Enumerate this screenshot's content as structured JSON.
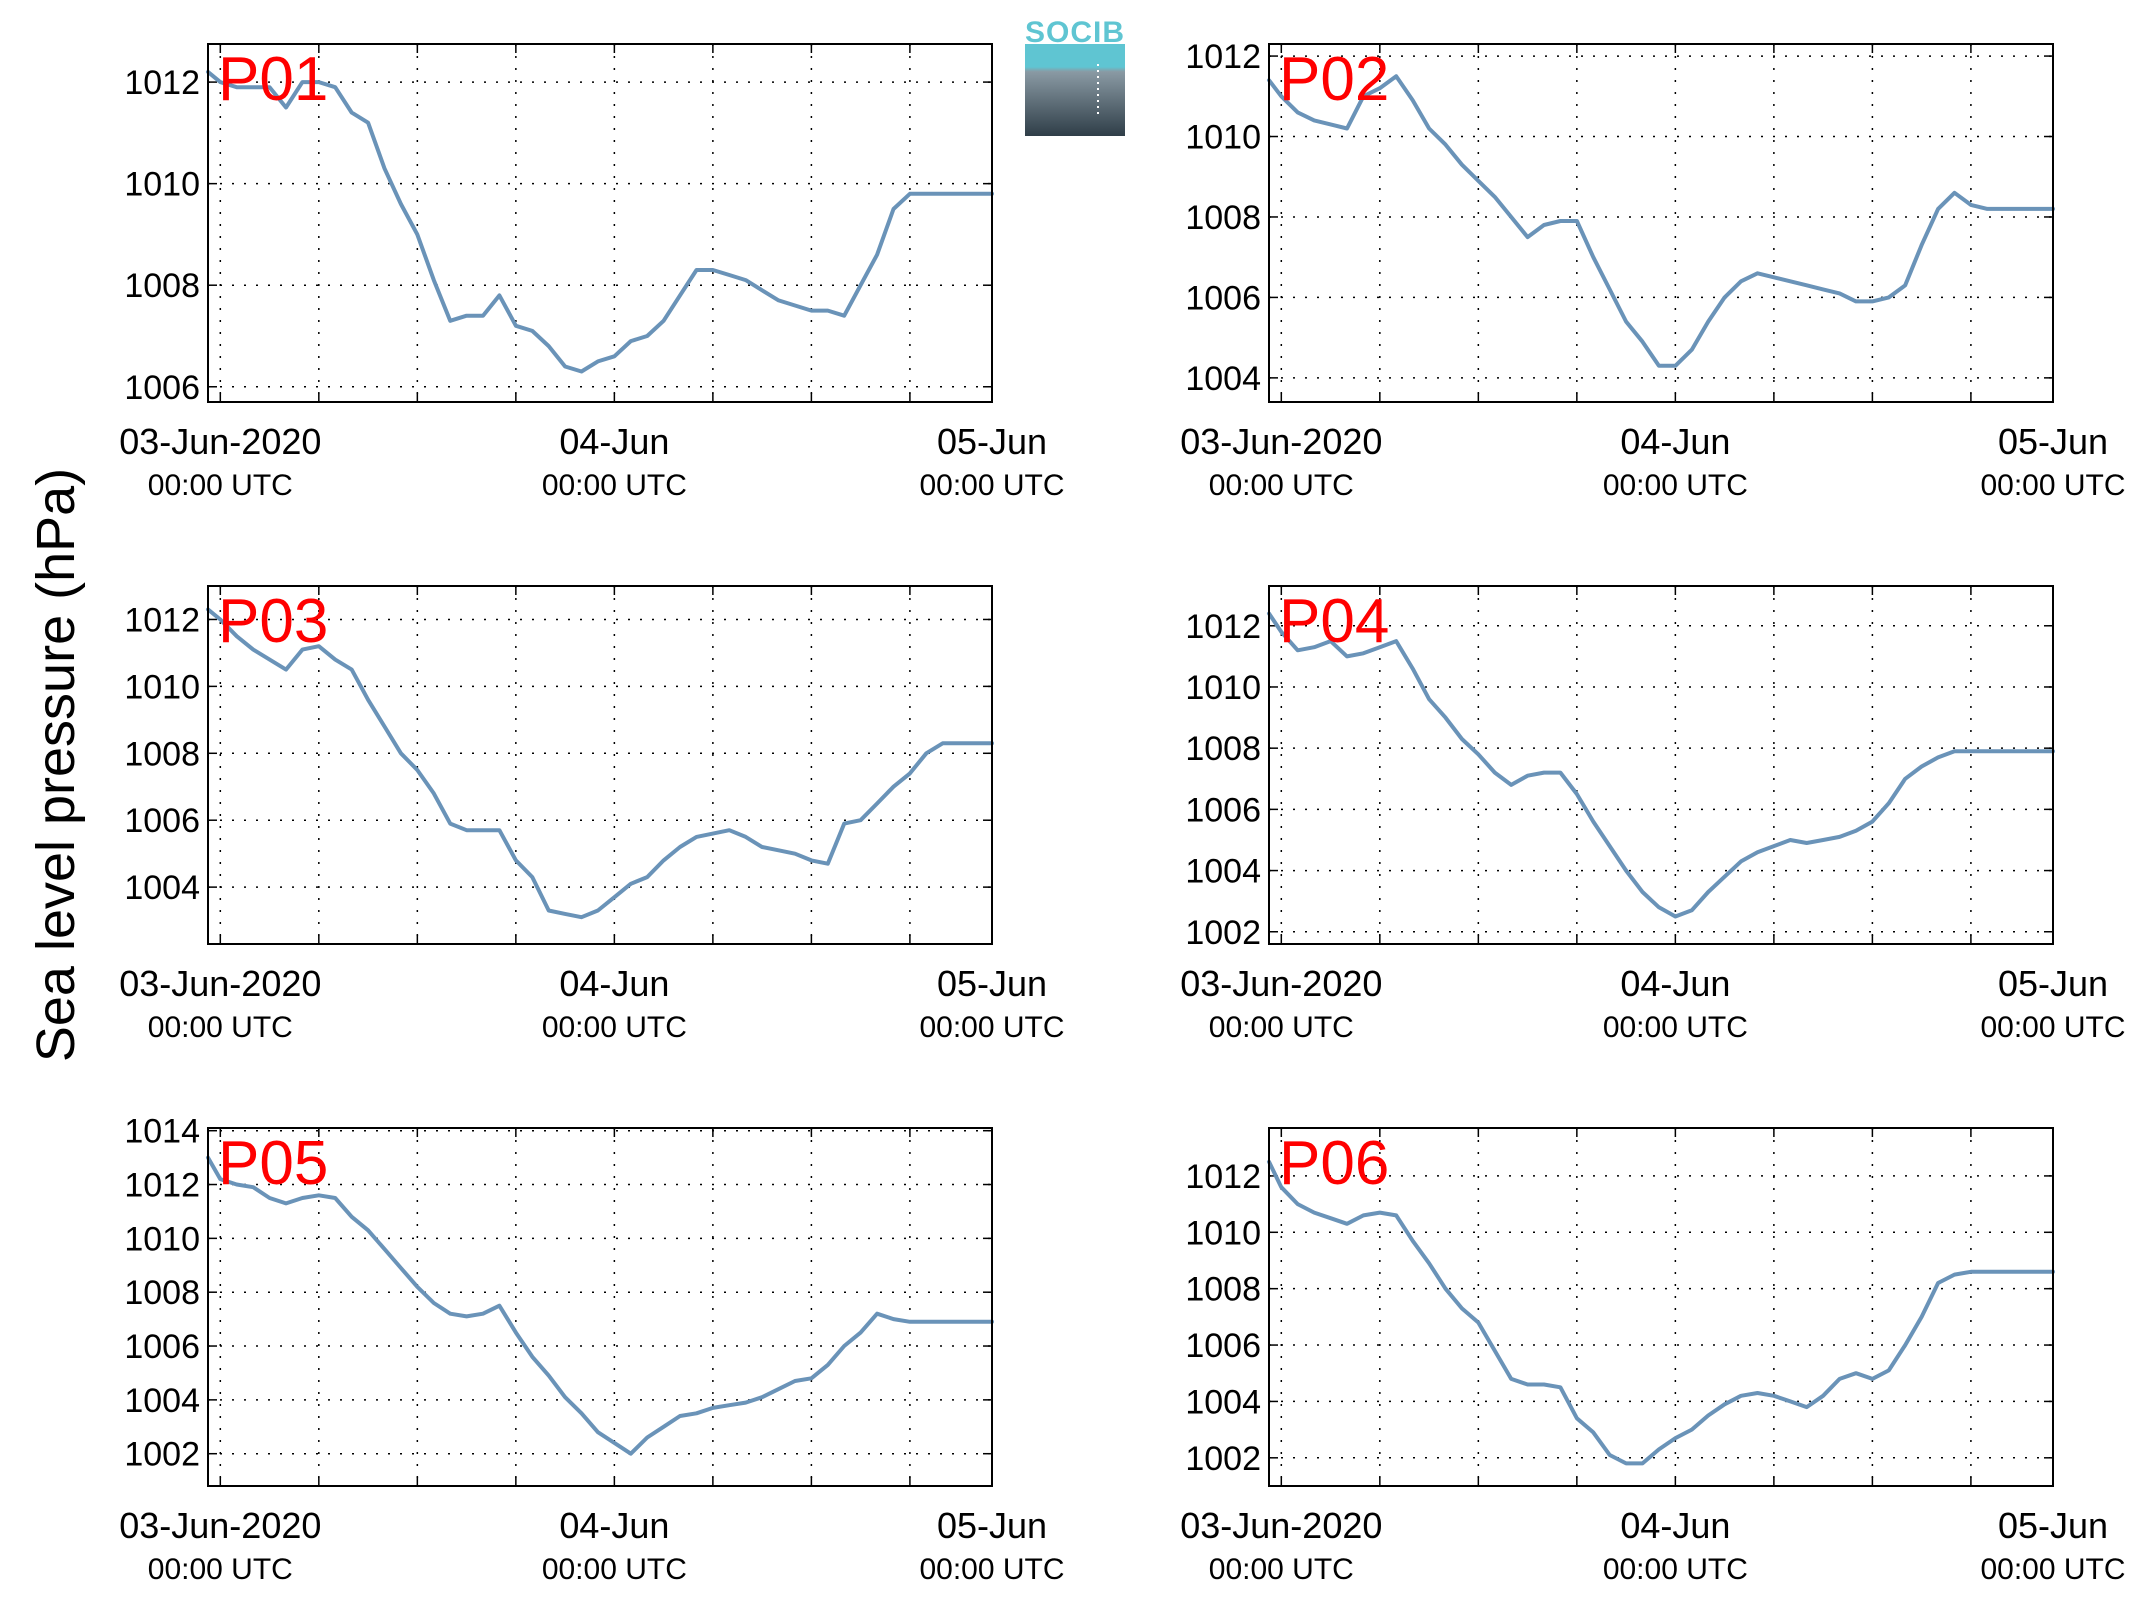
{
  "figure": {
    "ylabel": "Sea level pressure (hPa)",
    "logo_text": "SOCIB",
    "line_color": "#6a93b8",
    "label_color": "#ff0000",
    "x_ticks": [
      {
        "line1": "03-Jun-2020",
        "line2": "00:00 UTC"
      },
      {
        "line1": "04-Jun",
        "line2": "00:00 UTC"
      },
      {
        "line1": "05-Jun",
        "line2": "00:00 UTC"
      }
    ]
  },
  "chart_data": [
    {
      "type": "line",
      "label": "P01",
      "xlim": [
        -0.75,
        47
      ],
      "ylim": [
        1005.7,
        1012.75
      ],
      "yticks": [
        1006,
        1008,
        1010,
        1012
      ],
      "grid": true,
      "x": [
        -0.75,
        0,
        1,
        2,
        3,
        4,
        5,
        6,
        7,
        8,
        9,
        10,
        11,
        12,
        13,
        14,
        15,
        16,
        17,
        18,
        19,
        20,
        21,
        22,
        23,
        24,
        25,
        26,
        27,
        28,
        29,
        30,
        31,
        32,
        33,
        34,
        35,
        36,
        37,
        38,
        39,
        40,
        41,
        42,
        43,
        44,
        45,
        46,
        47
      ],
      "y": [
        1012.2,
        1012.0,
        1011.9,
        1011.9,
        1011.9,
        1011.5,
        1012.0,
        1012.0,
        1011.9,
        1011.4,
        1011.2,
        1010.3,
        1009.6,
        1009.0,
        1008.1,
        1007.3,
        1007.4,
        1007.4,
        1007.8,
        1007.2,
        1007.1,
        1006.8,
        1006.4,
        1006.3,
        1006.5,
        1006.6,
        1006.9,
        1007.0,
        1007.3,
        1007.8,
        1008.3,
        1008.3,
        1008.2,
        1008.1,
        1007.9,
        1007.7,
        1007.6,
        1007.5,
        1007.5,
        1007.4,
        1008.0,
        1008.6,
        1009.5,
        1009.8,
        1009.8,
        1009.8,
        1009.8,
        1009.8,
        1009.8
      ]
    },
    {
      "type": "line",
      "label": "P02",
      "xlim": [
        -0.75,
        47
      ],
      "ylim": [
        1003.4,
        1012.3
      ],
      "yticks": [
        1004,
        1006,
        1008,
        1010,
        1012
      ],
      "grid": true,
      "x": [
        -0.75,
        0,
        1,
        2,
        3,
        4,
        5,
        6,
        7,
        8,
        9,
        10,
        11,
        12,
        13,
        14,
        15,
        16,
        17,
        18,
        19,
        20,
        21,
        22,
        23,
        24,
        25,
        26,
        27,
        28,
        29,
        30,
        31,
        32,
        33,
        34,
        35,
        36,
        37,
        38,
        39,
        40,
        41,
        42,
        43,
        44,
        45,
        46,
        47
      ],
      "y": [
        1011.4,
        1011.0,
        1010.6,
        1010.4,
        1010.3,
        1010.2,
        1011.0,
        1011.2,
        1011.5,
        1010.9,
        1010.2,
        1009.8,
        1009.3,
        1008.9,
        1008.5,
        1008.0,
        1007.5,
        1007.8,
        1007.9,
        1007.9,
        1007.0,
        1006.2,
        1005.4,
        1004.9,
        1004.3,
        1004.3,
        1004.7,
        1005.4,
        1006.0,
        1006.4,
        1006.6,
        1006.5,
        1006.4,
        1006.3,
        1006.2,
        1006.1,
        1005.9,
        1005.9,
        1006.0,
        1006.3,
        1007.3,
        1008.2,
        1008.6,
        1008.3,
        1008.2,
        1008.2,
        1008.2,
        1008.2,
        1008.2
      ]
    },
    {
      "type": "line",
      "label": "P03",
      "xlim": [
        -0.75,
        47
      ],
      "ylim": [
        1002.3,
        1013.0
      ],
      "yticks": [
        1004,
        1006,
        1008,
        1010,
        1012
      ],
      "grid": true,
      "x": [
        -0.75,
        0,
        1,
        2,
        3,
        4,
        5,
        6,
        7,
        8,
        9,
        10,
        11,
        12,
        13,
        14,
        15,
        16,
        17,
        18,
        19,
        20,
        21,
        22,
        23,
        24,
        25,
        26,
        27,
        28,
        29,
        30,
        31,
        32,
        33,
        34,
        35,
        36,
        37,
        38,
        39,
        40,
        41,
        42,
        43,
        44,
        45,
        46,
        47
      ],
      "y": [
        1012.3,
        1012.0,
        1011.5,
        1011.1,
        1010.8,
        1010.5,
        1011.1,
        1011.2,
        1010.8,
        1010.5,
        1009.6,
        1008.8,
        1008.0,
        1007.5,
        1006.8,
        1005.9,
        1005.7,
        1005.7,
        1005.7,
        1004.8,
        1004.3,
        1003.3,
        1003.2,
        1003.1,
        1003.3,
        1003.7,
        1004.1,
        1004.3,
        1004.8,
        1005.2,
        1005.5,
        1005.6,
        1005.7,
        1005.5,
        1005.2,
        1005.1,
        1005.0,
        1004.8,
        1004.7,
        1005.9,
        1006.0,
        1006.5,
        1007.0,
        1007.4,
        1008.0,
        1008.3,
        1008.3,
        1008.3,
        1008.3
      ]
    },
    {
      "type": "line",
      "label": "P04",
      "xlim": [
        -0.75,
        47
      ],
      "ylim": [
        1001.6,
        1013.3
      ],
      "yticks": [
        1002,
        1004,
        1006,
        1008,
        1010,
        1012
      ],
      "grid": true,
      "x": [
        -0.75,
        0,
        1,
        2,
        3,
        4,
        5,
        6,
        7,
        8,
        9,
        10,
        11,
        12,
        13,
        14,
        15,
        16,
        17,
        18,
        19,
        20,
        21,
        22,
        23,
        24,
        25,
        26,
        27,
        28,
        29,
        30,
        31,
        32,
        33,
        34,
        35,
        36,
        37,
        38,
        39,
        40,
        41,
        42,
        43,
        44,
        45,
        46,
        47
      ],
      "y": [
        1012.4,
        1011.8,
        1011.2,
        1011.3,
        1011.5,
        1011.0,
        1011.1,
        1011.3,
        1011.5,
        1010.6,
        1009.6,
        1009.0,
        1008.3,
        1007.8,
        1007.2,
        1006.8,
        1007.1,
        1007.2,
        1007.2,
        1006.5,
        1005.6,
        1004.8,
        1004.0,
        1003.3,
        1002.8,
        1002.5,
        1002.7,
        1003.3,
        1003.8,
        1004.3,
        1004.6,
        1004.8,
        1005.0,
        1004.9,
        1005.0,
        1005.1,
        1005.3,
        1005.6,
        1006.2,
        1007.0,
        1007.4,
        1007.7,
        1007.9,
        1007.9,
        1007.9,
        1007.9,
        1007.9,
        1007.9,
        1007.9
      ]
    },
    {
      "type": "line",
      "label": "P05",
      "xlim": [
        -0.75,
        47
      ],
      "ylim": [
        1000.8,
        1014.1
      ],
      "yticks": [
        1002,
        1004,
        1006,
        1008,
        1010,
        1012,
        1014
      ],
      "grid": true,
      "x": [
        -0.75,
        0,
        1,
        2,
        3,
        4,
        5,
        6,
        7,
        8,
        9,
        10,
        11,
        12,
        13,
        14,
        15,
        16,
        17,
        18,
        19,
        20,
        21,
        22,
        23,
        24,
        25,
        26,
        27,
        28,
        29,
        30,
        31,
        32,
        33,
        34,
        35,
        36,
        37,
        38,
        39,
        40,
        41,
        42,
        43,
        44,
        45,
        46,
        47
      ],
      "y": [
        1013.0,
        1012.2,
        1012.0,
        1011.9,
        1011.5,
        1011.3,
        1011.5,
        1011.6,
        1011.5,
        1010.8,
        1010.3,
        1009.6,
        1008.9,
        1008.2,
        1007.6,
        1007.2,
        1007.1,
        1007.2,
        1007.5,
        1006.5,
        1005.6,
        1004.9,
        1004.1,
        1003.5,
        1002.8,
        1002.4,
        1002.0,
        1002.6,
        1003.0,
        1003.4,
        1003.5,
        1003.7,
        1003.8,
        1003.9,
        1004.1,
        1004.4,
        1004.7,
        1004.8,
        1005.3,
        1006.0,
        1006.5,
        1007.2,
        1007.0,
        1006.9,
        1006.9,
        1006.9,
        1006.9,
        1006.9,
        1006.9
      ]
    },
    {
      "type": "line",
      "label": "P06",
      "xlim": [
        -0.75,
        47
      ],
      "ylim": [
        1001.0,
        1013.7
      ],
      "yticks": [
        1002,
        1004,
        1006,
        1008,
        1010,
        1012
      ],
      "grid": true,
      "x": [
        -0.75,
        0,
        1,
        2,
        3,
        4,
        5,
        6,
        7,
        8,
        9,
        10,
        11,
        12,
        13,
        14,
        15,
        16,
        17,
        18,
        19,
        20,
        21,
        22,
        23,
        24,
        25,
        26,
        27,
        28,
        29,
        30,
        31,
        32,
        33,
        34,
        35,
        36,
        37,
        38,
        39,
        40,
        41,
        42,
        43,
        44,
        45,
        46,
        47
      ],
      "y": [
        1012.5,
        1011.6,
        1011.0,
        1010.7,
        1010.5,
        1010.3,
        1010.6,
        1010.7,
        1010.6,
        1009.7,
        1008.9,
        1008.0,
        1007.3,
        1006.8,
        1005.8,
        1004.8,
        1004.6,
        1004.6,
        1004.5,
        1003.4,
        1002.9,
        1002.1,
        1001.8,
        1001.8,
        1002.3,
        1002.7,
        1003.0,
        1003.5,
        1003.9,
        1004.2,
        1004.3,
        1004.2,
        1004.0,
        1003.8,
        1004.2,
        1004.8,
        1005.0,
        1004.8,
        1005.1,
        1006.0,
        1007.0,
        1008.2,
        1008.5,
        1008.6,
        1008.6,
        1008.6,
        1008.6,
        1008.6,
        1008.6
      ]
    }
  ]
}
